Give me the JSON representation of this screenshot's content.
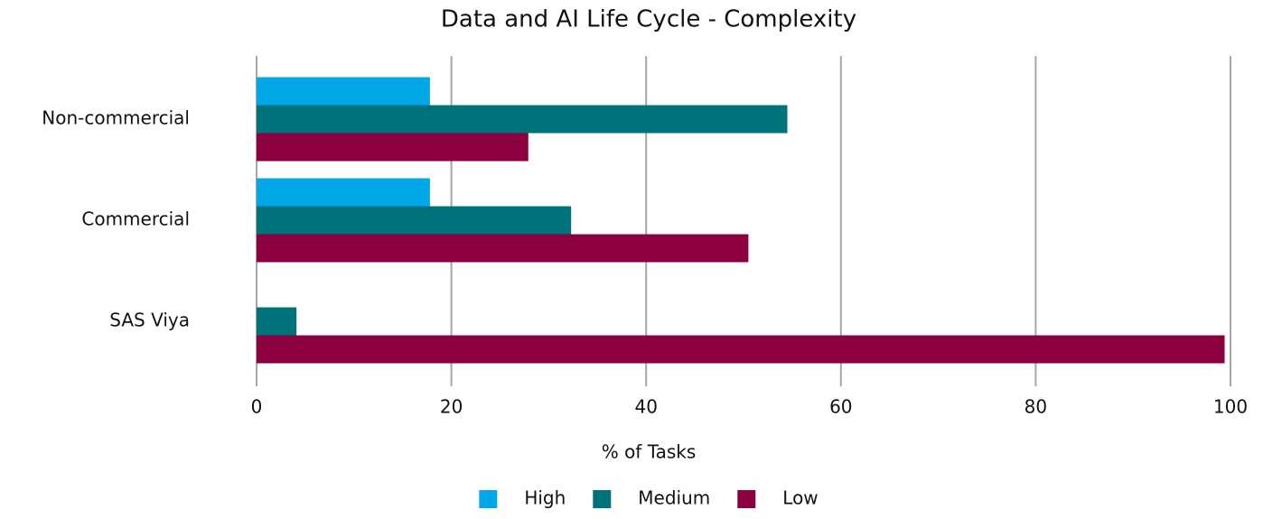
{
  "chart_data": {
    "type": "bar",
    "orientation": "horizontal",
    "title": "Data and AI Life Cycle - Complexity",
    "x_label": "% of Tasks",
    "categories": [
      "Non-commercial",
      "Commercial",
      "SAS Viya"
    ],
    "series": [
      {
        "name": "High",
        "color": "#00a8e8",
        "values": [
          17.8,
          17.8,
          0
        ]
      },
      {
        "name": "Medium",
        "color": "#00737a",
        "values": [
          54.5,
          32.3,
          4.1
        ]
      },
      {
        "name": "Low",
        "color": "#8c003f",
        "values": [
          27.9,
          50.5,
          99.4
        ]
      }
    ],
    "xlim": [
      0,
      100
    ],
    "xticks": [
      0,
      20,
      40,
      60,
      80,
      100
    ],
    "grid": true,
    "legend": "bottom"
  }
}
